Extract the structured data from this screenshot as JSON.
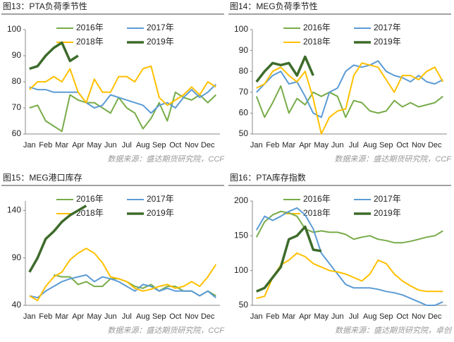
{
  "chart_data": [
    {
      "type": "line",
      "title": "图13：PTA负荷季节性",
      "source": "数据来源：盛达期货研究院，CCF",
      "categories": [
        "Jan",
        null,
        "Feb",
        null,
        "Mar",
        null,
        "Apr",
        null,
        "May",
        null,
        "Jun",
        null,
        "Jul",
        null,
        "Aug",
        null,
        "Sep",
        null,
        "Oct",
        null,
        "Nov",
        null,
        "Dec",
        null
      ],
      "ylim": [
        60,
        100
      ],
      "yticks": [
        60,
        70,
        80,
        90,
        100
      ],
      "series": [
        {
          "name": "2016年",
          "color": "#77ac48",
          "width": 2,
          "values": [
            70,
            71,
            65,
            63,
            61,
            75,
            73,
            72,
            72,
            70,
            68,
            74,
            70,
            68,
            62,
            66,
            72,
            65,
            76,
            74,
            73,
            75,
            72,
            75
          ]
        },
        {
          "name": "2017年",
          "color": "#5b9bd5",
          "width": 2,
          "values": [
            78,
            77,
            77,
            76,
            76,
            76,
            76,
            72,
            70,
            71,
            75,
            74,
            73,
            72,
            71,
            68,
            71,
            72,
            70,
            74,
            77,
            74,
            76,
            79
          ]
        },
        {
          "name": "2018年",
          "color": "#ffc000",
          "width": 2,
          "values": [
            77,
            80,
            80,
            82,
            80,
            85,
            76,
            72,
            81,
            76,
            76,
            82,
            82,
            80,
            85,
            86,
            74,
            71,
            73,
            75,
            78,
            75,
            80,
            78
          ]
        },
        {
          "name": "2019年",
          "color": "#3d6b2a",
          "width": 3.5,
          "values": [
            85,
            86,
            90,
            93,
            95,
            88,
            90,
            null,
            null,
            null,
            null,
            null,
            null,
            null,
            null,
            null,
            null,
            null,
            null,
            null,
            null,
            null,
            null,
            null
          ]
        }
      ]
    },
    {
      "type": "line",
      "title": "图14：MEG负荷季节性",
      "source": "数据来源：盛达期货研究院，CCF",
      "categories": [
        "Jan",
        null,
        "Feb",
        null,
        "Mar",
        null,
        "Apr",
        null,
        "May",
        null,
        "Jun",
        null,
        "Jul",
        null,
        "Aug",
        null,
        "Sep",
        null,
        "Oct",
        null,
        "Nov",
        null,
        "Dec",
        null
      ],
      "ylim": [
        50,
        100
      ],
      "yticks": [
        50,
        60,
        70,
        80,
        90,
        100
      ],
      "series": [
        {
          "name": "2016年",
          "color": "#77ac48",
          "width": 2,
          "values": [
            68,
            58,
            65,
            73,
            60,
            67,
            64,
            70,
            68,
            70,
            68,
            58,
            66,
            65,
            61,
            60,
            61,
            66,
            63,
            65,
            63,
            64,
            65,
            68
          ]
        },
        {
          "name": "2017年",
          "color": "#5b9bd5",
          "width": 2,
          "values": [
            70,
            74,
            78,
            80,
            74,
            75,
            68,
            60,
            58,
            70,
            72,
            80,
            83,
            82,
            83,
            85,
            80,
            78,
            77,
            75,
            78,
            75,
            74,
            76
          ]
        },
        {
          "name": "2018年",
          "color": "#ffc000",
          "width": 2,
          "values": [
            72,
            74,
            80,
            82,
            78,
            75,
            80,
            67,
            50,
            58,
            61,
            62,
            78,
            84,
            83,
            82,
            76,
            70,
            78,
            78,
            76,
            80,
            82,
            75
          ]
        },
        {
          "name": "2019年",
          "color": "#3d6b2a",
          "width": 3.5,
          "values": [
            75,
            80,
            84,
            83,
            84,
            78,
            87,
            78,
            null,
            null,
            null,
            null,
            null,
            null,
            null,
            null,
            null,
            null,
            null,
            null,
            null,
            null,
            null,
            null
          ]
        }
      ]
    },
    {
      "type": "line",
      "title": "图15：MEG港口库存",
      "source": "数据来源：盛达期货研究院，CCF",
      "categories": [
        "Jan",
        null,
        "Feb",
        null,
        "Mar",
        null,
        "Apr",
        null,
        "May",
        null,
        "Jun",
        null,
        "Jul",
        null,
        "Aug",
        null,
        "Sep",
        null,
        "Oct",
        null,
        "Nov",
        null,
        "Dec",
        null
      ],
      "ylim": [
        40,
        150
      ],
      "yticks": [
        40,
        90,
        140
      ],
      "series": [
        {
          "name": "2016年",
          "color": "#77ac48",
          "width": 2,
          "values": [
            null,
            null,
            null,
            72,
            70,
            70,
            62,
            65,
            60,
            60,
            68,
            68,
            65,
            60,
            58,
            62,
            55,
            60,
            60,
            55,
            55,
            50,
            55,
            50
          ]
        },
        {
          "name": "2017年",
          "color": "#5b9bd5",
          "width": 2,
          "values": [
            50,
            48,
            55,
            60,
            65,
            68,
            70,
            72,
            65,
            70,
            68,
            65,
            60,
            55,
            62,
            60,
            55,
            58,
            55,
            55,
            55,
            50,
            55,
            48
          ]
        },
        {
          "name": "2018年",
          "color": "#ffc000",
          "width": 2,
          "values": [
            50,
            45,
            60,
            70,
            75,
            88,
            95,
            100,
            95,
            85,
            70,
            68,
            65,
            58,
            55,
            57,
            60,
            62,
            58,
            60,
            65,
            60,
            70,
            83
          ]
        },
        {
          "name": "2019年",
          "color": "#3d6b2a",
          "width": 3.5,
          "values": [
            75,
            90,
            110,
            118,
            128,
            135,
            140,
            145,
            null,
            null,
            null,
            null,
            null,
            null,
            null,
            null,
            null,
            null,
            null,
            null,
            null,
            null,
            null,
            null
          ]
        }
      ]
    },
    {
      "type": "line",
      "title": "图16：PTA库存指数",
      "source": "数据来源：盛达期货研究院，卓创",
      "categories": [
        "Jan",
        null,
        "Feb",
        null,
        "Mar",
        null,
        "Apr",
        null,
        "May",
        null,
        "Jun",
        null,
        "Jul",
        null,
        "Aug",
        null,
        "Sep",
        null,
        "Oct",
        null,
        "Nov",
        null,
        "Dec",
        null
      ],
      "ylim": [
        50,
        200
      ],
      "yticks": [
        50,
        100,
        150,
        200
      ],
      "series": [
        {
          "name": "2016年",
          "color": "#77ac48",
          "width": 2,
          "values": [
            148,
            170,
            180,
            185,
            183,
            178,
            160,
            155,
            157,
            155,
            155,
            152,
            145,
            148,
            150,
            145,
            143,
            140,
            140,
            142,
            145,
            148,
            150,
            157
          ]
        },
        {
          "name": "2017年",
          "color": "#5b9bd5",
          "width": 2,
          "values": [
            158,
            178,
            172,
            178,
            185,
            190,
            180,
            160,
            125,
            110,
            95,
            80,
            75,
            75,
            75,
            73,
            70,
            68,
            65,
            60,
            55,
            50,
            50,
            55
          ]
        },
        {
          "name": "2018年",
          "color": "#ffc000",
          "width": 2,
          "values": [
            60,
            63,
            90,
            108,
            115,
            125,
            120,
            110,
            105,
            100,
            98,
            95,
            90,
            85,
            95,
            115,
            110,
            95,
            85,
            78,
            72,
            70,
            70,
            70
          ]
        },
        {
          "name": "2019年",
          "color": "#3d6b2a",
          "width": 3.5,
          "values": [
            70,
            75,
            90,
            105,
            145,
            150,
            163,
            130,
            128,
            null,
            null,
            null,
            null,
            null,
            null,
            null,
            null,
            null,
            null,
            null,
            null,
            null,
            null,
            null
          ]
        }
      ]
    }
  ]
}
